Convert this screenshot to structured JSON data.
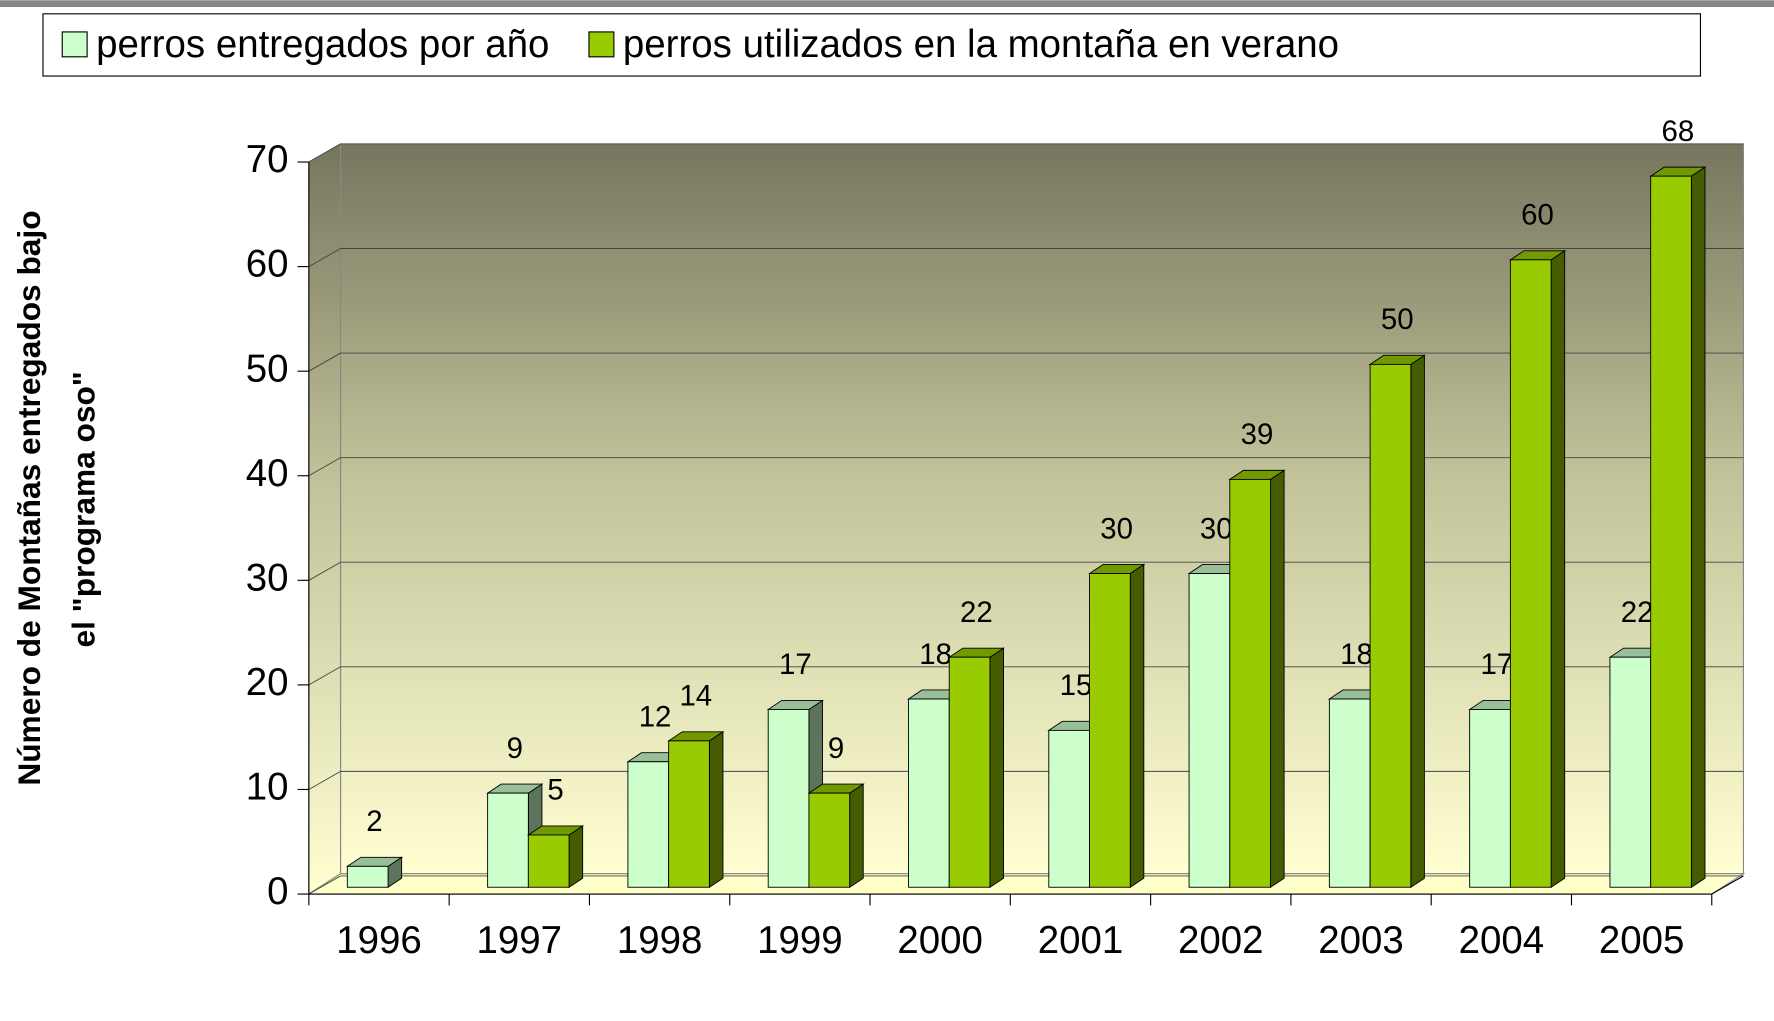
{
  "chart_data": {
    "type": "bar3d",
    "ylabel": [
      "Número de Montañas entregados bajo",
      "el \"programa oso\""
    ],
    "categories": [
      "1996",
      "1997",
      "1998",
      "1999",
      "2000",
      "2001",
      "2002",
      "2003",
      "2004",
      "2005"
    ],
    "series": [
      {
        "name": "perros entregados por año",
        "color": "#ccffcc",
        "values": [
          2,
          9,
          12,
          17,
          18,
          15,
          30,
          18,
          17,
          22
        ]
      },
      {
        "name": "perros utilizados en la montaña en verano",
        "color": "#99cc00",
        "values": [
          null,
          5,
          14,
          9,
          22,
          30,
          39,
          50,
          60,
          68
        ]
      }
    ],
    "ylim": [
      0,
      70
    ],
    "yticks": [
      0,
      10,
      20,
      30,
      40,
      50,
      60,
      70
    ],
    "grid": true,
    "legend": "top"
  }
}
